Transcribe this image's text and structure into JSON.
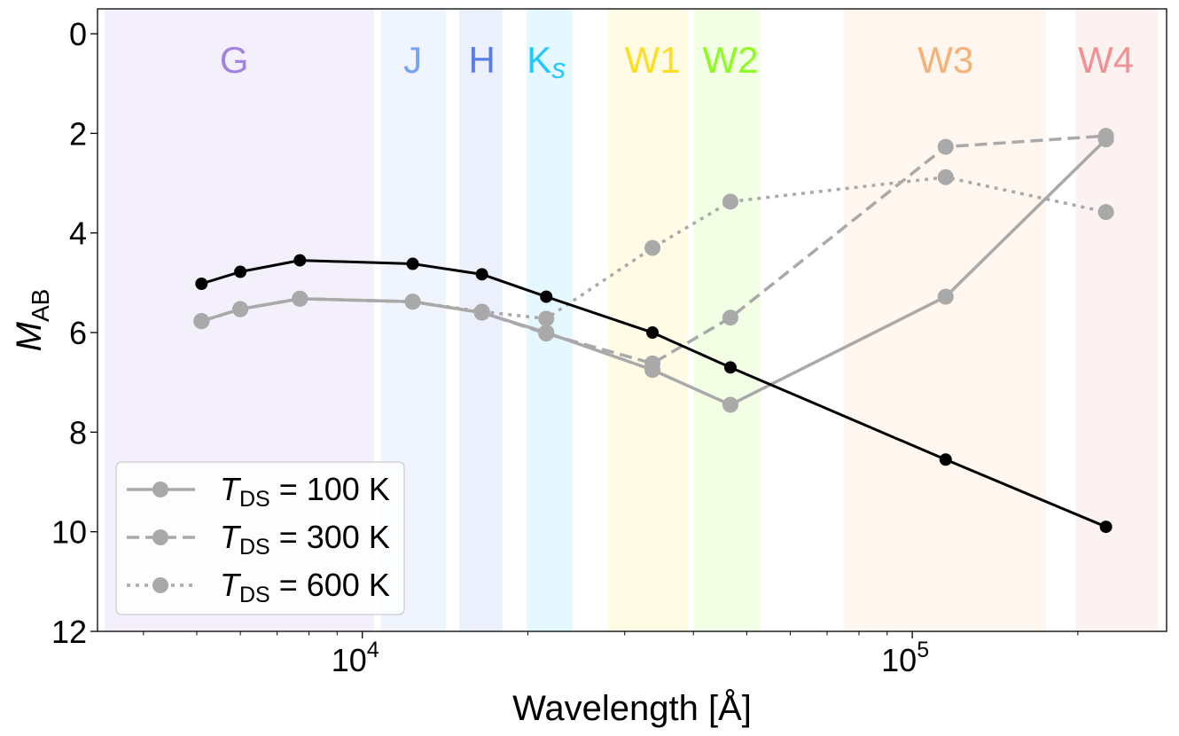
{
  "chart_data": {
    "type": "line",
    "xscale": "log",
    "xlabel": "Wavelength [Å]",
    "ylabel": {
      "main": "M",
      "sub": "AB"
    },
    "xlim": [
      3300,
      290000
    ],
    "ylim": [
      12,
      -0.5
    ],
    "y_ticks": [
      0,
      2,
      4,
      6,
      8,
      10,
      12
    ],
    "x_major_ticks": [
      {
        "value": 10000,
        "base": "10",
        "exp": "4"
      },
      {
        "value": 100000,
        "base": "10",
        "exp": "5"
      }
    ],
    "x_minor_ticks": [
      4000,
      5000,
      6000,
      7000,
      8000,
      9000,
      20000,
      30000,
      40000,
      50000,
      60000,
      70000,
      80000,
      90000,
      200000
    ],
    "bands": [
      {
        "name": "G",
        "main": "G",
        "sub": "",
        "range": [
          3400,
          10500
        ],
        "center": 5850,
        "color": "#9370db"
      },
      {
        "name": "J",
        "main": "J",
        "sub": "",
        "range": [
          10800,
          14200
        ],
        "center": 12350,
        "color": "#6495ed"
      },
      {
        "name": "H",
        "main": "H",
        "sub": "",
        "range": [
          15000,
          18000
        ],
        "center": 16500,
        "color": "#4169e1"
      },
      {
        "name": "Ks",
        "main": "K",
        "sub": "s",
        "range": [
          19900,
          24100
        ],
        "center": 21600,
        "color": "#00bfff"
      },
      {
        "name": "W1",
        "main": "W1",
        "sub": "",
        "range": [
          28000,
          39000
        ],
        "center": 33700,
        "color": "#ffd700"
      },
      {
        "name": "W2",
        "main": "W2",
        "sub": "",
        "range": [
          40000,
          53000
        ],
        "center": 46700,
        "color": "#7cfc00"
      },
      {
        "name": "W3",
        "main": "W3",
        "sub": "",
        "range": [
          75000,
          175000
        ],
        "center": 115000,
        "color": "#f4a460"
      },
      {
        "name": "W4",
        "main": "W4",
        "sub": "",
        "range": [
          198000,
          280000
        ],
        "center": 225000,
        "color": "#f08080"
      }
    ],
    "x": [
      5100,
      6000,
      7700,
      12350,
      16500,
      21600,
      33700,
      46700,
      115000,
      225000
    ],
    "series": [
      {
        "name": "black",
        "color": "#000000",
        "dash": "solid",
        "values": [
          5.02,
          4.78,
          4.55,
          4.62,
          4.83,
          5.28,
          6.0,
          6.7,
          8.55,
          9.9
        ]
      },
      {
        "name": "T_DS = 100 K",
        "color": "#a9a9a9",
        "dash": "solid",
        "values": [
          5.77,
          5.53,
          5.32,
          5.38,
          5.6,
          6.0,
          6.75,
          7.45,
          5.28,
          2.12
        ]
      },
      {
        "name": "T_DS = 300 K",
        "color": "#a9a9a9",
        "dash": "dashed",
        "values": [
          5.77,
          5.53,
          5.32,
          5.38,
          5.6,
          6.02,
          6.62,
          5.7,
          2.27,
          2.05
        ]
      },
      {
        "name": "T_DS = 600 K",
        "color": "#a9a9a9",
        "dash": "dotted",
        "values": [
          5.77,
          5.53,
          5.32,
          5.38,
          5.58,
          5.72,
          4.3,
          3.37,
          2.88,
          3.58
        ]
      }
    ],
    "legend": {
      "position": "lower-left",
      "entries": [
        {
          "var": "T",
          "sub": "DS",
          "rest": " = 100 K",
          "dash": "solid"
        },
        {
          "var": "T",
          "sub": "DS",
          "rest": " = 300 K",
          "dash": "dashed"
        },
        {
          "var": "T",
          "sub": "DS",
          "rest": " = 600 K",
          "dash": "dotted"
        }
      ]
    }
  }
}
